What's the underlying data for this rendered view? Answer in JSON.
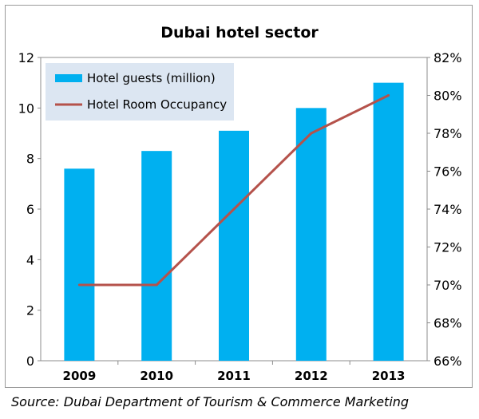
{
  "chart_data": {
    "type": "bar",
    "title": "Dubai hotel sector",
    "categories": [
      "2009",
      "2010",
      "2011",
      "2012",
      "2013"
    ],
    "series": [
      {
        "name": "Hotel guests (million)",
        "type": "bar",
        "axis": "left",
        "values": [
          7.6,
          8.3,
          9.1,
          10.0,
          11.0
        ],
        "color": "#00b0f0"
      },
      {
        "name": "Hotel Room Occupancy",
        "type": "line",
        "axis": "right",
        "values": [
          70,
          70,
          74,
          78,
          80
        ],
        "color": "#b5524b"
      }
    ],
    "y_left": {
      "min": 0,
      "max": 12,
      "ticks": [
        "0",
        "2",
        "4",
        "6",
        "8",
        "10",
        "12"
      ]
    },
    "y_right": {
      "min": 66,
      "max": 82,
      "ticks": [
        "66%",
        "68%",
        "70%",
        "72%",
        "74%",
        "76%",
        "78%",
        "80%",
        "82%"
      ]
    },
    "grid": false,
    "legend": "top-left"
  },
  "source_text": "Source: Dubai Department of Tourism & Commerce Marketing"
}
